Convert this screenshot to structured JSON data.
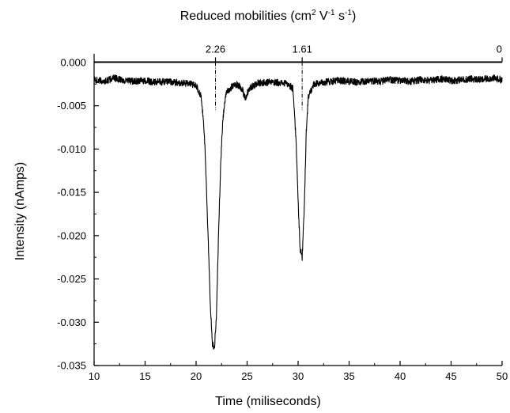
{
  "chart_data": {
    "type": "line",
    "xlabel": "Time (miliseconds)",
    "ylabel": "Intensity (nAmps)",
    "top_axis": {
      "label_main": "Reduced mobilities (cm",
      "label_sup1": "2",
      "label_mid1": " V",
      "label_sup2": "-1",
      "label_mid2": " s",
      "label_sup3": "-1",
      "label_end": ")",
      "markers": [
        {
          "label": "2.26",
          "time": 21.9
        },
        {
          "label": "1.61",
          "time": 30.4
        },
        {
          "label": "0",
          "time": 50
        }
      ]
    },
    "xlim": [
      10,
      50
    ],
    "ylim": [
      -0.035,
      0.001
    ],
    "xticks": [
      10,
      15,
      20,
      25,
      30,
      35,
      40,
      45,
      50
    ],
    "xtick_labels": [
      "10",
      "15",
      "20",
      "25",
      "30",
      "35",
      "40",
      "45",
      "50"
    ],
    "yticks": [
      0.0,
      -0.005,
      -0.01,
      -0.015,
      -0.02,
      -0.025,
      -0.03,
      -0.035
    ],
    "ytick_labels": [
      "0.000",
      "-0.005",
      "-0.010",
      "-0.015",
      "-0.020",
      "-0.025",
      "-0.030",
      "-0.035"
    ],
    "grid": false,
    "series": [
      {
        "color": "#000000",
        "x": [
          10.0,
          11.0,
          12.0,
          13.0,
          14.0,
          15.0,
          16.0,
          17.0,
          18.0,
          19.0,
          20.0,
          20.5,
          20.8,
          21.0,
          21.2,
          21.4,
          21.6,
          21.8,
          22.0,
          22.2,
          22.4,
          22.6,
          22.8,
          23.0,
          23.5,
          24.0,
          24.5,
          24.8,
          25.2,
          26.0,
          27.0,
          28.0,
          29.0,
          29.5,
          29.8,
          30.0,
          30.2,
          30.4,
          30.6,
          30.8,
          31.0,
          31.5,
          32.0,
          33.0,
          34.0,
          35.0,
          36.0,
          37.0,
          38.0,
          39.0,
          40.0,
          41.0,
          42.0,
          43.0,
          44.0,
          45.0,
          46.0,
          47.0,
          48.0,
          49.0,
          50.0
        ],
        "y": [
          -0.002,
          -0.0022,
          -0.0018,
          -0.0021,
          -0.0022,
          -0.0021,
          -0.0023,
          -0.0022,
          -0.0023,
          -0.0024,
          -0.0026,
          -0.004,
          -0.008,
          -0.014,
          -0.021,
          -0.028,
          -0.0325,
          -0.033,
          -0.029,
          -0.02,
          -0.012,
          -0.007,
          -0.0045,
          -0.0035,
          -0.0028,
          -0.0025,
          -0.003,
          -0.0042,
          -0.003,
          -0.0024,
          -0.0023,
          -0.0023,
          -0.0025,
          -0.003,
          -0.009,
          -0.016,
          -0.0215,
          -0.0225,
          -0.017,
          -0.008,
          -0.004,
          -0.0026,
          -0.0024,
          -0.0022,
          -0.0021,
          -0.0022,
          -0.0023,
          -0.0021,
          -0.0022,
          -0.002,
          -0.0021,
          -0.0022,
          -0.002,
          -0.0021,
          -0.0019,
          -0.0021,
          -0.002,
          -0.0019,
          -0.002,
          -0.0018,
          -0.002
        ]
      }
    ]
  }
}
